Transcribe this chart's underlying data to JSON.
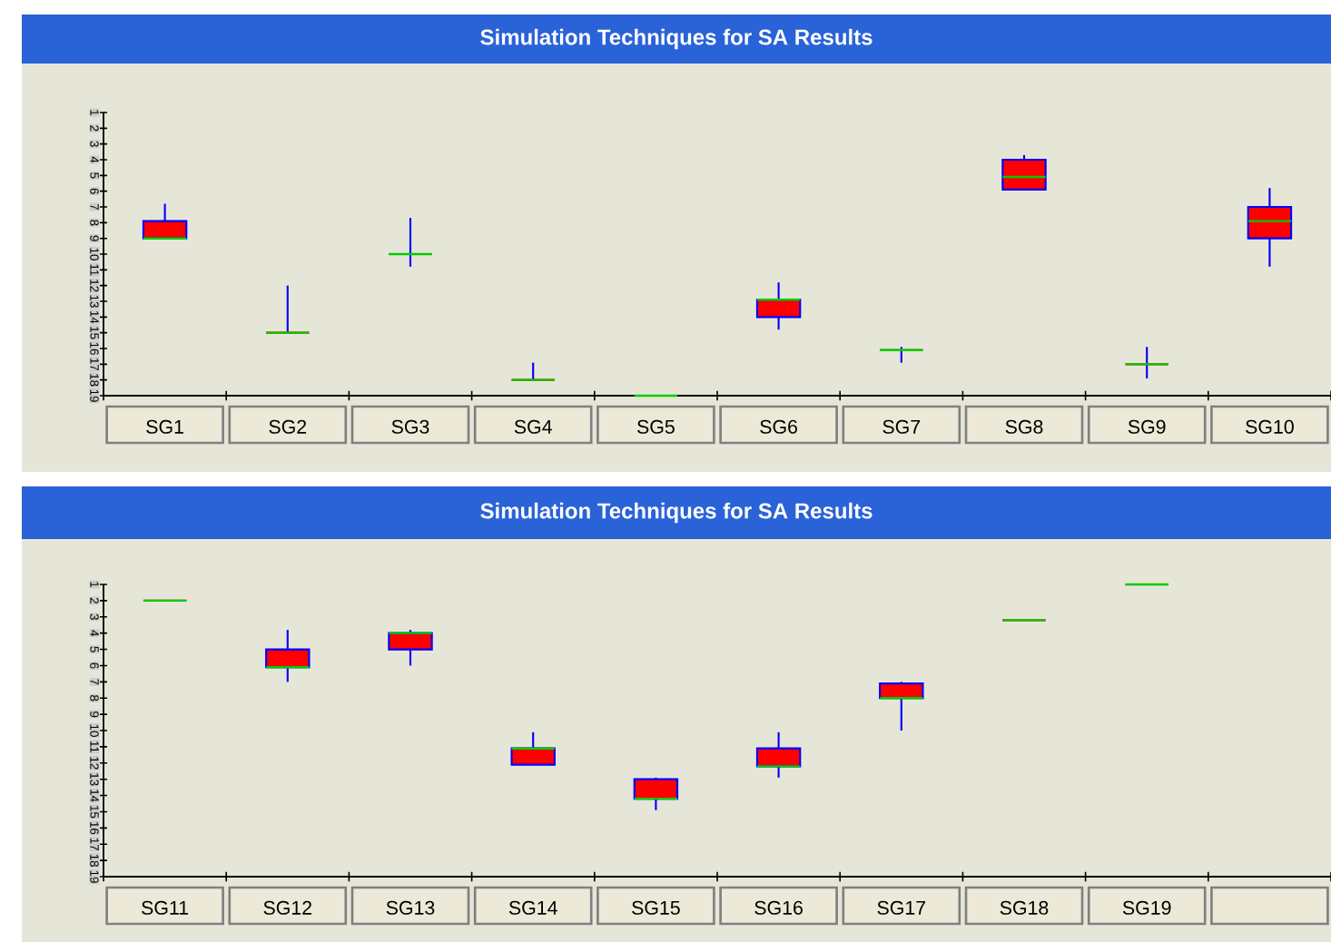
{
  "chart_data": [
    {
      "type": "box",
      "title": "Simulation Techniques for SA Results",
      "categories": [
        "SG1",
        "SG2",
        "SG3",
        "SG4",
        "SG5",
        "SG6",
        "SG7",
        "SG8",
        "SG9",
        "SG10"
      ],
      "ylim": [
        19,
        1
      ],
      "yticks": [
        1,
        2,
        3,
        4,
        5,
        6,
        7,
        8,
        9,
        10,
        11,
        12,
        13,
        14,
        15,
        16,
        17,
        18,
        19
      ],
      "color": "#ff0000",
      "boxes": [
        {
          "low": 6.8,
          "q1": 7.9,
          "median": 9,
          "q3": 9,
          "high": 9
        },
        {
          "low": 12,
          "q1": 15,
          "median": 15,
          "q3": 15,
          "high": 15
        },
        {
          "low": 7.7,
          "q1": 10,
          "median": 10,
          "q3": 10,
          "high": 10.8
        },
        {
          "low": 16.9,
          "q1": 18,
          "median": 18,
          "q3": 18,
          "high": 18
        },
        {
          "low": 19,
          "q1": 19,
          "median": 19,
          "q3": 19,
          "high": 19
        },
        {
          "low": 11.8,
          "q1": 12.9,
          "median": 12.9,
          "q3": 14,
          "high": 14.8
        },
        {
          "low": 15.9,
          "q1": 16.1,
          "median": 16.1,
          "q3": 16.1,
          "high": 16.9
        },
        {
          "low": 3.7,
          "q1": 4,
          "median": 5.1,
          "q3": 5.9,
          "high": 5.9
        },
        {
          "low": 15.9,
          "q1": 17,
          "median": 17,
          "q3": 17,
          "high": 17.9
        },
        {
          "low": 5.8,
          "q1": 7,
          "median": 7.9,
          "q3": 9,
          "high": 10.8
        }
      ]
    },
    {
      "type": "box",
      "title": "Simulation Techniques for SA Results",
      "categories": [
        "SG11",
        "SG12",
        "SG13",
        "SG14",
        "SG15",
        "SG16",
        "SG17",
        "SG18",
        "SG19",
        null
      ],
      "ylim": [
        19,
        1
      ],
      "yticks": [
        1,
        2,
        3,
        4,
        5,
        6,
        7,
        8,
        9,
        10,
        11,
        12,
        13,
        14,
        15,
        16,
        17,
        18,
        19
      ],
      "color": "#ff0000",
      "boxes": [
        {
          "low": 2,
          "q1": 2,
          "median": 2,
          "q3": 2,
          "high": 2
        },
        {
          "low": 3.8,
          "q1": 5,
          "median": 6.1,
          "q3": 6.1,
          "high": 7
        },
        {
          "low": 3.8,
          "q1": 4,
          "median": 4,
          "q3": 5,
          "high": 6
        },
        {
          "low": 10.1,
          "q1": 11.1,
          "median": 11.1,
          "q3": 12.1,
          "high": 12.1
        },
        {
          "low": 12.9,
          "q1": 13,
          "median": 14.2,
          "q3": 14.2,
          "high": 14.9
        },
        {
          "low": 10.1,
          "q1": 11.1,
          "median": 12.2,
          "q3": 12.2,
          "high": 12.9
        },
        {
          "low": 7,
          "q1": 7.1,
          "median": 8,
          "q3": 8,
          "high": 10
        },
        {
          "low": 3.2,
          "q1": 3.2,
          "median": 3.2,
          "q3": 3.2,
          "high": 3.2
        },
        {
          "low": 1,
          "q1": 1,
          "median": 1,
          "q3": 1,
          "high": 1
        },
        null
      ]
    }
  ]
}
